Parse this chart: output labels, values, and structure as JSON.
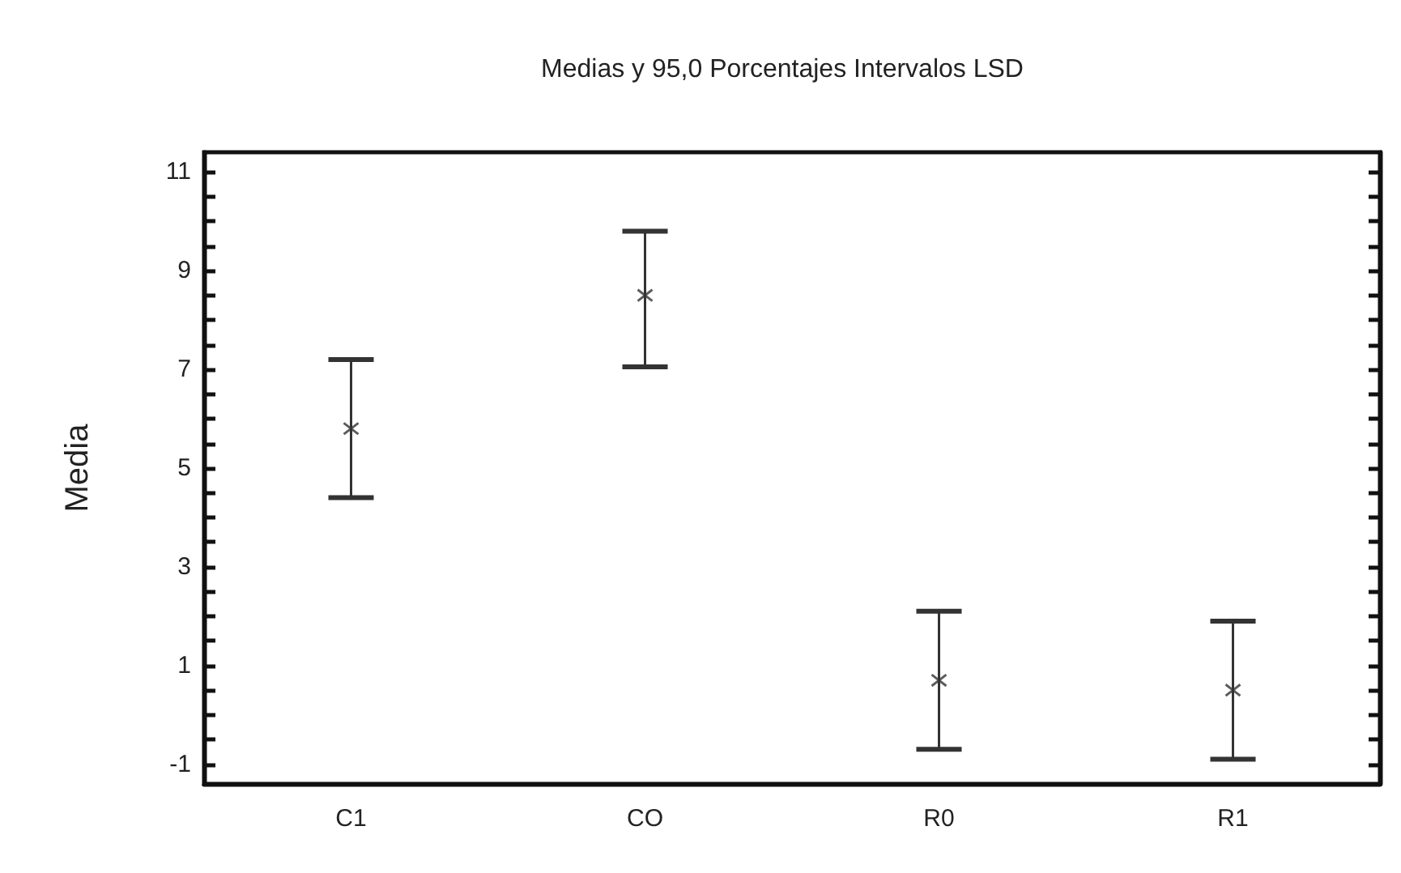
{
  "chart_data": {
    "type": "scatter",
    "title": "Medias y 95,0 Porcentajes Intervalos LSD",
    "ylabel": "Media",
    "categories": [
      "C1",
      "CO",
      "R0",
      "R1"
    ],
    "series": [
      {
        "color": "#333333",
        "values": [
          5.8,
          8.5,
          0.7,
          0.5
        ],
        "errors": [
          [
            4.4,
            7.2
          ],
          [
            7.05,
            9.8
          ],
          [
            -0.7,
            2.1
          ],
          [
            -0.9,
            1.9
          ]
        ]
      }
    ],
    "ylim": [
      -1.4,
      11.4
    ],
    "yticks": [
      -1,
      {
        "value": -0.5,
        "label": null
      },
      {
        "value": 0,
        "label": null
      },
      {
        "value": 0.5,
        "label": null
      },
      1,
      {
        "value": 1.5,
        "label": null
      },
      {
        "value": 2,
        "label": null
      },
      {
        "value": 2.5,
        "label": null
      },
      3,
      {
        "value": 3.5,
        "label": null
      },
      {
        "value": 4,
        "label": null
      },
      {
        "value": 4.5,
        "label": null
      },
      5,
      {
        "value": 5.5,
        "label": null
      },
      {
        "value": 6,
        "label": null
      },
      {
        "value": 6.5,
        "label": null
      },
      7,
      {
        "value": 7.5,
        "label": null
      },
      {
        "value": 8,
        "label": null
      },
      {
        "value": 8.5,
        "label": null
      },
      9,
      {
        "value": 9.5,
        "label": null
      },
      {
        "value": 10,
        "label": null
      },
      {
        "value": 10.5,
        "label": null
      },
      11
    ],
    "marker": "cross",
    "grid": false
  }
}
